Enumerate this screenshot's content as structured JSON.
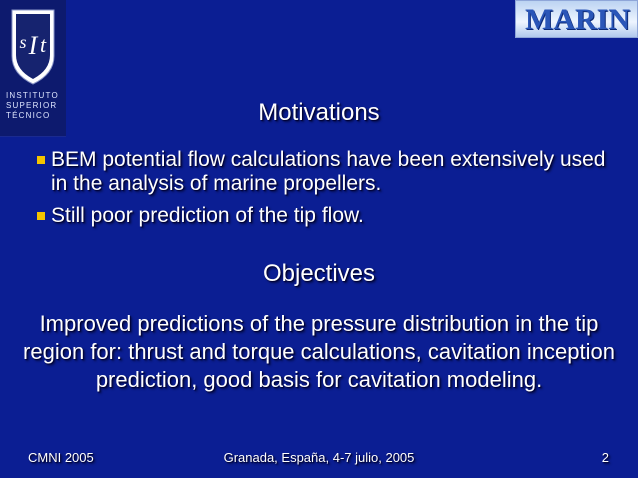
{
  "logos": {
    "ist": {
      "icon": "ist-shield-icon",
      "name_lines": [
        "INSTITUTO",
        "SUPERIOR",
        "TÉCNICO"
      ]
    },
    "marin": {
      "name": "MARIN"
    }
  },
  "motivations": {
    "title": "Motivations",
    "bullets": [
      "BEM potential flow calculations have been extensively used in the analysis of marine propellers.",
      "Still poor prediction of the tip flow."
    ]
  },
  "objectives": {
    "title": "Objectives",
    "text": "Improved predictions of the pressure distribution in the tip region for: thrust and torque calculations, cavitation inception prediction, good basis for cavitation modeling."
  },
  "footer": {
    "left": "CMNI 2005",
    "center": "Granada, España, 4-7 julio, 2005",
    "right": "2"
  },
  "colors": {
    "background": "#0b1e93",
    "bullet_marker": "#f5c400",
    "text": "#ffffff"
  }
}
